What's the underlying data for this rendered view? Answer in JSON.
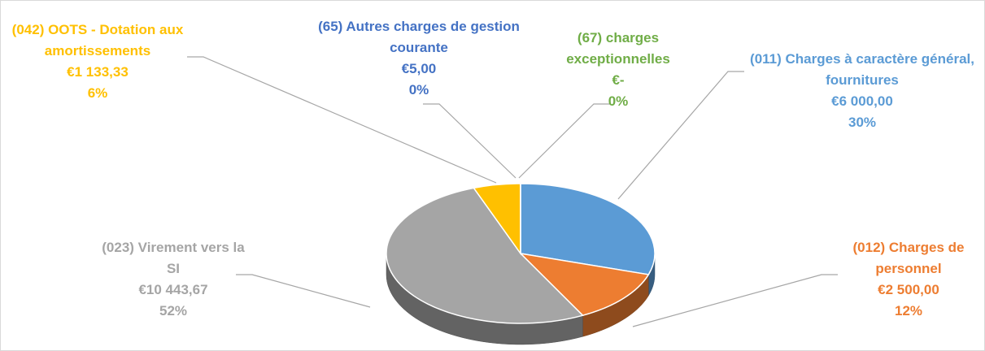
{
  "chart_data": {
    "type": "pie",
    "categories": [
      "(011) Charges à caractère général, fournitures",
      "(012) Charges de personnel",
      "(023) Virement vers la SI",
      "(042) OOTS - Dotation aux amortissements",
      "(65) Autres charges de gestion courante",
      "(67) charges exceptionnelles"
    ],
    "values": [
      6000,
      2500,
      10443.67,
      1133.33,
      5,
      0
    ],
    "value_labels": [
      "€6 000,00",
      "€2 500,00",
      "€10 443,67",
      "€1 133,33",
      "€5,00",
      "€-"
    ],
    "percent_labels": [
      "30%",
      "12%",
      "52%",
      "6%",
      "0%",
      "0%"
    ],
    "colors": [
      "#5b9bd5",
      "#ed7d31",
      "#a5a5a5",
      "#ffc000",
      "#4472c4",
      "#70ad47"
    ]
  }
}
